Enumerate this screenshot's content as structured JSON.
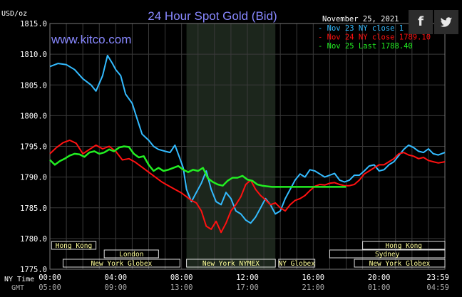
{
  "chart_data": {
    "type": "line",
    "title": "24 Hour Spot Gold (Bid)",
    "site": "www.kitco.com",
    "date": "November 25, 2021",
    "ylabel": "USD/oz",
    "ylim": [
      1775.0,
      1815.0
    ],
    "yticks": [
      "1815.0",
      "1810.0",
      "1805.0",
      "1800.0",
      "1795.0",
      "1790.0",
      "1785.0",
      "1780.0",
      "1775.0"
    ],
    "yticks_values": [
      1815,
      1810,
      1805,
      1800,
      1795,
      1790,
      1785,
      1780,
      1775
    ],
    "xlim": [
      0,
      24
    ],
    "x_axis_nytime_label": "NY Time",
    "x_axis_gmt_label": "GMT",
    "x_ticks_hours": [
      0,
      4,
      8,
      12,
      16,
      20,
      24
    ],
    "x_ticks_nytime": [
      "00:00",
      "04:00",
      "08:00",
      "12:00",
      "16:00",
      "20:00",
      "23:59"
    ],
    "x_ticks_gmt": [
      "05:00",
      "09:00",
      "13:00",
      "17:00",
      "21:00",
      "01:00",
      "04:59"
    ],
    "shaded_region_hours": [
      8.3,
      13.7
    ],
    "grid": true,
    "legend": "top-right",
    "series": [
      {
        "name": "Nov 23 NY close 1",
        "color": "#33bbff",
        "x": [
          0,
          0.5,
          1,
          1.5,
          2,
          2.5,
          2.8,
          3.2,
          3.5,
          3.8,
          4.0,
          4.3,
          4.6,
          5.0,
          5.3,
          5.6,
          5.8,
          6.0,
          6.3,
          6.6,
          7.0,
          7.3,
          7.6,
          7.9,
          8.1,
          8.3,
          8.6,
          8.9,
          9.2,
          9.5,
          9.8,
          10.1,
          10.4,
          10.7,
          11.0,
          11.3,
          11.6,
          11.9,
          12.2,
          12.5,
          12.8,
          13.1,
          13.4,
          13.7,
          14.0,
          14.3,
          14.6,
          14.9,
          15.2,
          15.5,
          15.8,
          16.1,
          16.4,
          16.7,
          17.0,
          17.3,
          17.6,
          17.9,
          18.2,
          18.5,
          18.8,
          19.1,
          19.4,
          19.7,
          20.0,
          20.3,
          20.6,
          20.9,
          21.2,
          21.5,
          21.8,
          22.1,
          22.4,
          22.7,
          23.0,
          23.3,
          23.6,
          24.0
        ],
        "y": [
          1808.0,
          1808.5,
          1808.3,
          1807.5,
          1806.0,
          1805.0,
          1804.0,
          1806.5,
          1809.8,
          1808.5,
          1807.5,
          1806.5,
          1803.5,
          1802.0,
          1799.5,
          1797.0,
          1796.5,
          1796.0,
          1795.0,
          1794.5,
          1794.2,
          1794.0,
          1795.2,
          1793.0,
          1791.5,
          1788.0,
          1786.0,
          1787.5,
          1789.0,
          1791.0,
          1788.0,
          1786.0,
          1785.5,
          1787.5,
          1786.5,
          1784.5,
          1784.0,
          1783.0,
          1782.5,
          1783.5,
          1785.0,
          1786.5,
          1785.5,
          1784.0,
          1784.5,
          1786.5,
          1788.0,
          1789.5,
          1790.5,
          1790.0,
          1791.2,
          1791.0,
          1790.5,
          1790.0,
          1790.3,
          1790.6,
          1789.5,
          1789.2,
          1789.5,
          1790.3,
          1790.3,
          1791.0,
          1791.8,
          1792.0,
          1791.0,
          1791.2,
          1792.0,
          1792.5,
          1793.5,
          1794.5,
          1795.2,
          1794.8,
          1794.2,
          1794.0,
          1794.6,
          1793.8,
          1793.6,
          1794.0
        ]
      },
      {
        "name": "Nov 24 NY close 1789.10",
        "color": "#ff1111",
        "x": [
          0,
          0.4,
          0.8,
          1.2,
          1.6,
          2.0,
          2.4,
          2.8,
          3.2,
          3.6,
          4.0,
          4.4,
          4.8,
          5.2,
          5.6,
          6.0,
          6.4,
          6.8,
          7.2,
          7.6,
          8.0,
          8.3,
          8.6,
          8.9,
          9.2,
          9.5,
          9.8,
          10.1,
          10.4,
          10.7,
          11.0,
          11.3,
          11.6,
          11.9,
          12.2,
          12.5,
          12.8,
          13.1,
          13.4,
          13.7,
          14.0,
          14.3,
          14.6,
          14.9,
          15.2,
          15.5,
          15.8,
          16.1,
          16.4,
          16.7,
          17.0,
          17.3,
          17.6,
          17.9,
          18.2,
          18.5,
          18.8,
          19.1,
          19.4,
          19.7,
          20.0,
          20.3,
          20.6,
          20.9,
          21.2,
          21.5,
          21.8,
          22.1,
          22.4,
          22.7,
          23.0,
          23.3,
          23.6,
          24.0
        ],
        "y": [
          1793.8,
          1794.8,
          1795.6,
          1796.0,
          1795.5,
          1793.8,
          1794.5,
          1795.2,
          1794.6,
          1795.0,
          1794.2,
          1792.8,
          1793.0,
          1792.4,
          1791.6,
          1790.8,
          1790.0,
          1789.2,
          1788.6,
          1788.0,
          1787.4,
          1786.8,
          1786.2,
          1785.8,
          1784.5,
          1782.0,
          1781.5,
          1782.8,
          1781.0,
          1782.5,
          1784.5,
          1785.5,
          1786.8,
          1788.8,
          1789.5,
          1788.0,
          1787.0,
          1786.3,
          1785.5,
          1785.8,
          1785.0,
          1784.5,
          1785.5,
          1786.2,
          1786.5,
          1787.0,
          1787.8,
          1788.5,
          1788.8,
          1788.7,
          1789.0,
          1789.1,
          1788.8,
          1788.6,
          1788.6,
          1788.8,
          1789.5,
          1790.5,
          1791.0,
          1791.5,
          1792.0,
          1792.0,
          1792.5,
          1793.0,
          1793.8,
          1794.0,
          1793.6,
          1793.4,
          1793.0,
          1793.2,
          1792.7,
          1792.5,
          1792.3,
          1792.5
        ]
      },
      {
        "name": "Nov 25 Last 1788.40",
        "color": "#22ee22",
        "x": [
          0,
          0.3,
          0.6,
          0.9,
          1.2,
          1.5,
          1.8,
          2.1,
          2.4,
          2.7,
          3.0,
          3.3,
          3.6,
          3.9,
          4.2,
          4.5,
          4.8,
          5.1,
          5.4,
          5.7,
          6.0,
          6.3,
          6.6,
          6.9,
          7.2,
          7.5,
          7.8,
          8.1,
          8.4,
          8.7,
          9.0,
          9.3,
          9.6,
          9.9,
          10.2,
          10.5,
          10.8,
          11.1,
          11.4,
          11.7,
          12.0,
          12.3,
          12.6,
          12.9,
          13.2,
          13.5,
          13.8,
          14.1,
          14.4,
          14.7,
          15.0,
          15.3,
          15.6,
          15.9,
          16.2,
          16.5,
          16.8,
          17.1,
          17.4,
          17.7,
          18.0
        ],
        "y": [
          1792.8,
          1792.0,
          1792.6,
          1793.0,
          1793.5,
          1793.8,
          1793.7,
          1793.3,
          1794.0,
          1794.2,
          1793.8,
          1794.0,
          1794.5,
          1794.2,
          1794.8,
          1795.0,
          1794.9,
          1793.8,
          1793.2,
          1793.4,
          1792.0,
          1791.0,
          1791.5,
          1791.0,
          1791.2,
          1791.5,
          1791.8,
          1791.2,
          1790.8,
          1791.2,
          1791.0,
          1791.5,
          1789.8,
          1789.2,
          1788.8,
          1788.6,
          1789.4,
          1789.9,
          1789.9,
          1790.2,
          1789.6,
          1789.4,
          1788.8,
          1788.6,
          1788.5,
          1788.4,
          1788.4,
          1788.4,
          1788.4,
          1788.4,
          1788.4,
          1788.4,
          1788.4,
          1788.4,
          1788.4,
          1788.4,
          1788.4,
          1788.4,
          1788.4,
          1788.4,
          1788.4
        ]
      }
    ],
    "market_sessions": [
      {
        "label": "Hong Kong",
        "row": 0,
        "start": 0.1,
        "end": 2.8
      },
      {
        "label": "London",
        "row": 1,
        "start": 3.3,
        "end": 6.6
      },
      {
        "label": "New York Globex",
        "row": 2,
        "start": 0.8,
        "end": 7.9
      },
      {
        "label": "New York NYMEX",
        "row": 2,
        "start": 8.3,
        "end": 13.7
      },
      {
        "label": "NY Globex",
        "row": 2,
        "start": 13.9,
        "end": 16.1
      },
      {
        "label": "Hong Kong",
        "row": 0,
        "start": 19.0,
        "end": 24.0
      },
      {
        "label": "Sydney",
        "row": 1,
        "start": 17.0,
        "end": 24.0
      },
      {
        "label": "New York Globex",
        "row": 2,
        "start": 18.5,
        "end": 24.0
      }
    ]
  },
  "share": {
    "facebook_label": "f",
    "twitter_label": "🐦"
  },
  "colors": {
    "title": "#8888ff",
    "site": "#8888ff",
    "grid": "#3a3a3a",
    "shade": "#1c261c",
    "axis_text": "#ffffff",
    "session_text": "#ffff99"
  }
}
